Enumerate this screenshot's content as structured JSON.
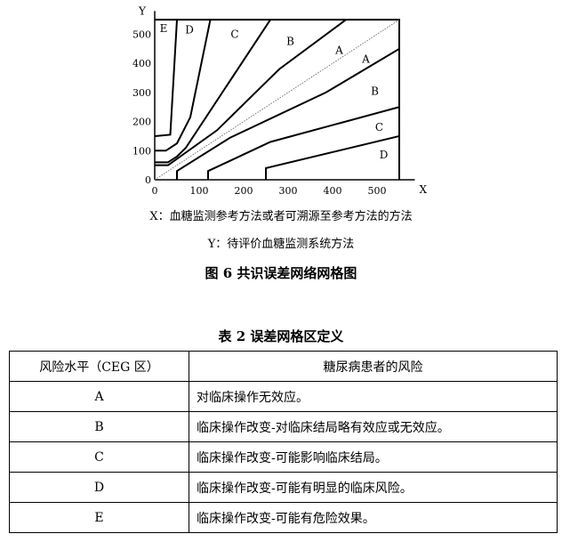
{
  "chart_data": {
    "type": "line",
    "xlabel": "X",
    "ylabel": "Y",
    "xlim": [
      0,
      550
    ],
    "ylim": [
      0,
      550
    ],
    "xticks": [
      0,
      100,
      200,
      300,
      400,
      500
    ],
    "yticks": [
      0,
      100,
      200,
      300,
      400,
      500
    ],
    "diagonal": [
      [
        0,
        0
      ],
      [
        550,
        550
      ]
    ],
    "boundaries": [
      [
        [
          0,
          150
        ],
        [
          35,
          155
        ],
        [
          50,
          550
        ]
      ],
      [
        [
          0,
          100
        ],
        [
          25,
          100
        ],
        [
          50,
          125
        ],
        [
          80,
          215
        ],
        [
          125,
          550
        ]
      ],
      [
        [
          0,
          60
        ],
        [
          30,
          60
        ],
        [
          50,
          80
        ],
        [
          70,
          110
        ],
        [
          260,
          550
        ]
      ],
      [
        [
          0,
          50
        ],
        [
          30,
          50
        ],
        [
          140,
          170
        ],
        [
          280,
          380
        ],
        [
          430,
          550
        ]
      ],
      [
        [
          50,
          0
        ],
        [
          50,
          30
        ],
        [
          170,
          145
        ],
        [
          385,
          300
        ],
        [
          550,
          450
        ]
      ],
      [
        [
          120,
          0
        ],
        [
          120,
          30
        ],
        [
          260,
          130
        ],
        [
          550,
          250
        ]
      ],
      [
        [
          250,
          0
        ],
        [
          250,
          40
        ],
        [
          550,
          150
        ]
      ]
    ],
    "zone_labels": [
      {
        "text": "E",
        "x": 20,
        "y": 520
      },
      {
        "text": "D",
        "x": 78,
        "y": 515
      },
      {
        "text": "C",
        "x": 180,
        "y": 500
      },
      {
        "text": "B",
        "x": 305,
        "y": 475
      },
      {
        "text": "A",
        "x": 415,
        "y": 445
      },
      {
        "text": "A",
        "x": 475,
        "y": 415
      },
      {
        "text": "B",
        "x": 495,
        "y": 305
      },
      {
        "text": "C",
        "x": 505,
        "y": 180
      },
      {
        "text": "D",
        "x": 515,
        "y": 85
      }
    ]
  },
  "captions": {
    "x_desc": "X：血糖监测参考方法或者可溯源至参考方法的方法",
    "y_desc": "Y：待评价血糖监测系统方法",
    "figure_title": "图 6  共识误差网络网格图",
    "table_title": "表 2  误差网格区定义"
  },
  "table": {
    "headers": [
      "风险水平（CEG 区）",
      "糖尿病患者的风险"
    ],
    "rows": [
      [
        "A",
        "对临床操作无效应。"
      ],
      [
        "B",
        "临床操作改变-对临床结局略有效应或无效应。"
      ],
      [
        "C",
        "临床操作改变-可能影响临床结局。"
      ],
      [
        "D",
        "临床操作改变-可能有明显的临床风险。"
      ],
      [
        "E",
        "临床操作改变-可能有危险效果。"
      ]
    ]
  }
}
